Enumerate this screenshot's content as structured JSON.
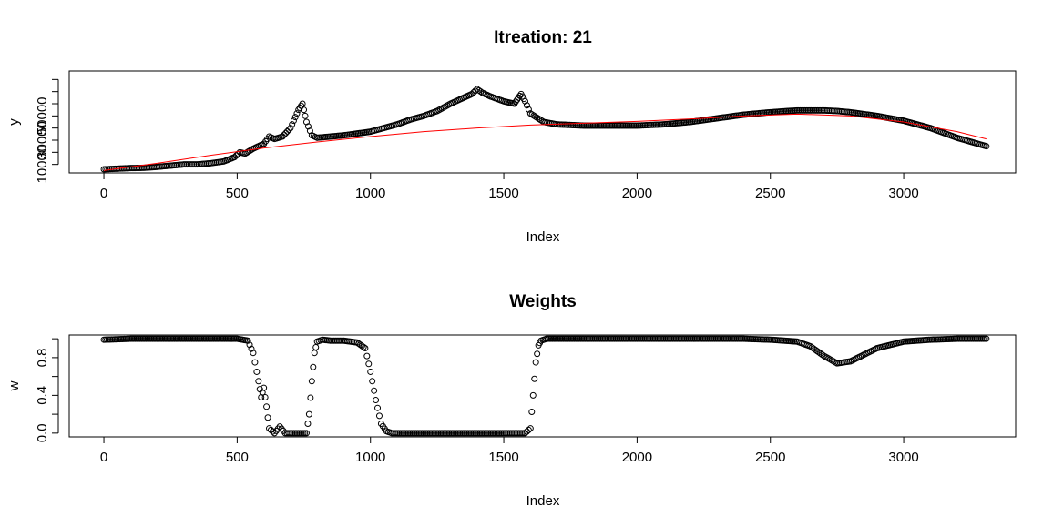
{
  "chart_data": [
    {
      "type": "scatter",
      "title": "Itreation:  21",
      "xlabel": "Index",
      "ylabel": "y",
      "xlim": [
        -130,
        3420
      ],
      "ylim": [
        3000,
        87000
      ],
      "x_ticks": [
        0,
        500,
        1000,
        1500,
        2000,
        2500,
        3000
      ],
      "y_ticks": [
        10000,
        30000,
        50000
      ],
      "y_minor_ticks": [
        20000,
        40000,
        60000,
        70000,
        80000
      ],
      "series": [
        {
          "kind": "points",
          "color": "#000000",
          "x": [
            0,
            50,
            100,
            150,
            200,
            250,
            300,
            350,
            400,
            450,
            490,
            510,
            530,
            560,
            600,
            620,
            640,
            670,
            700,
            730,
            745,
            760,
            780,
            800,
            900,
            1000,
            1050,
            1100,
            1150,
            1200,
            1250,
            1300,
            1340,
            1380,
            1400,
            1420,
            1450,
            1500,
            1540,
            1555,
            1565,
            1580,
            1600,
            1650,
            1700,
            1800,
            1900,
            2000,
            2100,
            2200,
            2300,
            2400,
            2500,
            2600,
            2700,
            2750,
            2800,
            2900,
            3000,
            3100,
            3200,
            3310
          ],
          "y": [
            6000,
            6500,
            7000,
            7200,
            8000,
            9000,
            10000,
            10000,
            11000,
            12500,
            16000,
            20000,
            19000,
            23000,
            27000,
            33000,
            31000,
            33000,
            40000,
            55000,
            60000,
            45000,
            34000,
            32000,
            34000,
            37000,
            40000,
            43000,
            47000,
            50000,
            54000,
            60000,
            64000,
            68000,
            72000,
            69000,
            66000,
            62000,
            60000,
            65000,
            68000,
            62000,
            52000,
            45000,
            43000,
            42000,
            42000,
            42000,
            43000,
            45000,
            48000,
            51000,
            53000,
            54500,
            54500,
            54000,
            53000,
            50000,
            46000,
            40000,
            32000,
            25000
          ]
        },
        {
          "kind": "line",
          "color": "#ff0000",
          "x": [
            0,
            200,
            400,
            600,
            800,
            1000,
            1200,
            1400,
            1600,
            1800,
            2000,
            2200,
            2400,
            2600,
            2800,
            3000,
            3200,
            3310
          ],
          "y": [
            5000,
            11000,
            17500,
            23500,
            28500,
            33000,
            37000,
            40000,
            42500,
            44000,
            45500,
            47500,
            50000,
            51500,
            50000,
            45000,
            37000,
            31000
          ]
        }
      ]
    },
    {
      "type": "scatter",
      "title": "Weights",
      "xlabel": "Index",
      "ylabel": "w",
      "xlim": [
        -130,
        3420
      ],
      "ylim": [
        -0.04,
        1.04
      ],
      "x_ticks": [
        0,
        500,
        1000,
        1500,
        2000,
        2500,
        3000
      ],
      "y_ticks": [
        0.0,
        0.4,
        0.8
      ],
      "y_tick_labels": [
        "0.0",
        "0.4",
        "0.8"
      ],
      "y_minor_ticks": [
        0.2,
        0.6,
        1.0
      ],
      "series": [
        {
          "kind": "points",
          "color": "#000000",
          "x": [
            0,
            100,
            200,
            300,
            400,
            500,
            540,
            560,
            580,
            590,
            600,
            610,
            620,
            640,
            660,
            680,
            700,
            760,
            770,
            780,
            790,
            800,
            820,
            850,
            900,
            950,
            980,
            1000,
            1020,
            1040,
            1060,
            1080,
            1100,
            1200,
            1300,
            1400,
            1500,
            1580,
            1600,
            1610,
            1620,
            1630,
            1640,
            1660,
            1700,
            1800,
            2000,
            2200,
            2400,
            2500,
            2600,
            2650,
            2700,
            2750,
            2800,
            2850,
            2900,
            3000,
            3100,
            3200,
            3310
          ],
          "x_note": "",
          "y": [
            0.99,
            1.0,
            1.0,
            1.0,
            1.0,
            1.0,
            0.98,
            0.85,
            0.55,
            0.38,
            0.48,
            0.28,
            0.05,
            0.0,
            0.07,
            0.0,
            0.0,
            0.0,
            0.2,
            0.55,
            0.85,
            0.97,
            0.99,
            0.98,
            0.98,
            0.96,
            0.9,
            0.65,
            0.35,
            0.1,
            0.02,
            0.0,
            0.0,
            0.0,
            0.0,
            0.0,
            0.0,
            0.0,
            0.05,
            0.4,
            0.75,
            0.93,
            0.98,
            1.0,
            1.0,
            1.0,
            1.0,
            1.0,
            1.0,
            0.99,
            0.97,
            0.92,
            0.82,
            0.74,
            0.76,
            0.83,
            0.9,
            0.97,
            0.99,
            1.0,
            1.0
          ]
        }
      ]
    }
  ]
}
